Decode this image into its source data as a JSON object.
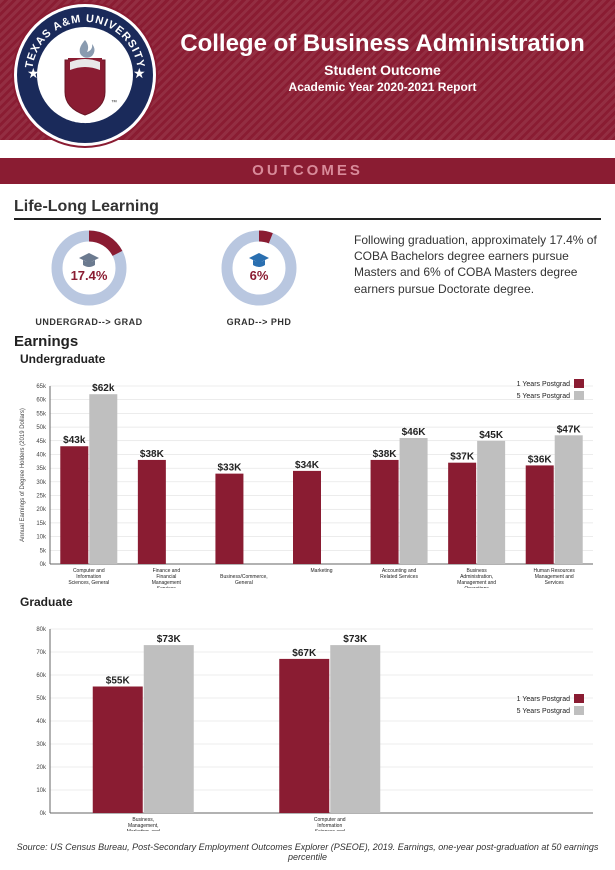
{
  "header": {
    "title": "College of Business Administration",
    "subtitle1": "Student Outcome",
    "subtitle2": "Academic Year 2020-2021 Report",
    "band_color": "#8a1c32",
    "seal": {
      "ring_text_top": "TEXAS A&M UNIVERSITY",
      "ring_text_bottom": "CENTRAL TEXAS",
      "ring_outer": "#1a2a5a",
      "ring_inner_bg": "#ffffff",
      "accent": "#8a1c32",
      "shield": "#8a1c32"
    }
  },
  "banner": {
    "label": "OUTCOMES",
    "bg": "#8a1c32",
    "fg": "#d88a99"
  },
  "lifelong": {
    "title": "Life-Long Learning",
    "donut1": {
      "pct": 17.4,
      "label": "17.4%",
      "caption": "UNDERGRAD--> GRAD",
      "ring_bg": "#b9c7e0",
      "ring_fg": "#8a1c32",
      "icon": "grad-cap",
      "icon_color": "#6b7a8f"
    },
    "donut2": {
      "pct": 6,
      "label": "6%",
      "caption": "GRAD--> PHD",
      "ring_bg": "#b9c7e0",
      "ring_fg": "#8a1c32",
      "icon": "grad-cap",
      "icon_color": "#2a6fb0"
    },
    "paragraph": "Following graduation, approximately 17.4% of COBA Bachelors degree earners pursue Masters and 6% of COBA Masters degree earners pursue Doctorate degree."
  },
  "earnings": {
    "title": "Earnings",
    "undergrad": {
      "label": "Undergraduate",
      "type": "grouped-bar",
      "series": [
        {
          "name": "1 Years Postgrad",
          "color": "#8a1c32"
        },
        {
          "name": "5 Years Postgrad",
          "color": "#bfbfbf"
        }
      ],
      "categories": [
        "Computer and Information Sciences, General",
        "Finance and Financial Management Services",
        "Business/Commerce, General",
        "Marketing",
        "Accounting and Related Services",
        "Business Administration, Management and Operations",
        "Human Resources Management and Services"
      ],
      "values_1yr": [
        43,
        38,
        33,
        34,
        38,
        37,
        36
      ],
      "values_5yr": [
        62,
        null,
        null,
        null,
        46,
        45,
        47
      ],
      "labels_1yr": [
        "$43k",
        "$38K",
        "$33K",
        "$34K",
        "$38K",
        "$37K",
        "$36K"
      ],
      "labels_5yr": [
        "$62k",
        "",
        "",
        "",
        "$46K",
        "$45K",
        "$47K"
      ],
      "ylim": [
        0,
        65
      ],
      "ytick_step": 5,
      "ytick_suffix": "k",
      "yaxis_label": "Annual Earnings of Degree Holders (2019 Dollars)",
      "grid_color": "#d9d9d9",
      "axis_color": "#666",
      "bg": "#ffffff",
      "bar_gap": 2,
      "group_width": 68
    },
    "grad": {
      "label": "Graduate",
      "type": "grouped-bar",
      "series": [
        {
          "name": "1 Years Postgrad",
          "color": "#8a1c32"
        },
        {
          "name": "5 Years Postgrad",
          "color": "#bfbfbf"
        }
      ],
      "categories": [
        "Business, Management, Marketing, and Related Support Services",
        "Computer and Information Sciences and Support Services"
      ],
      "values_1yr": [
        55,
        67
      ],
      "values_5yr": [
        73,
        73
      ],
      "labels_1yr": [
        "$55K",
        "$67K"
      ],
      "labels_5yr": [
        "$73K",
        "$73K"
      ],
      "ylim": [
        0,
        80
      ],
      "ytick_step": 10,
      "ytick_suffix": "k",
      "grid_color": "#d9d9d9",
      "axis_color": "#666",
      "bg": "#ffffff"
    }
  },
  "source": "Source: US Census Bureau, Post-Secondary Employment Outcomes Explorer (PSEOE), 2019. Earnings, one-year post-graduation at 50 earnings percentile"
}
